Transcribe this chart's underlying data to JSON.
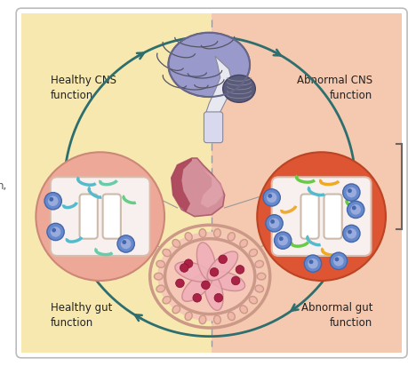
{
  "fig_width": 4.6,
  "fig_height": 4.12,
  "dpi": 100,
  "bg_left_color": "#f7e8b0",
  "bg_right_color": "#f5c8b0",
  "border_color": "#cccccc",
  "circle_color": "#2d6e6e",
  "arrow_color": "#2d6e6e",
  "dashed_line_color": "#999999",
  "label_healthy_cns": "Healthy CNS\nfunction",
  "label_abnormal_cns": "Abnormal CNS\nfunction",
  "label_healthy_gut": "Healthy gut\nfunction",
  "label_abnormal_gut": "Abnormal gut\nfunction",
  "label_left": "n,",
  "text_color": "#222222",
  "font_size": 8.5
}
